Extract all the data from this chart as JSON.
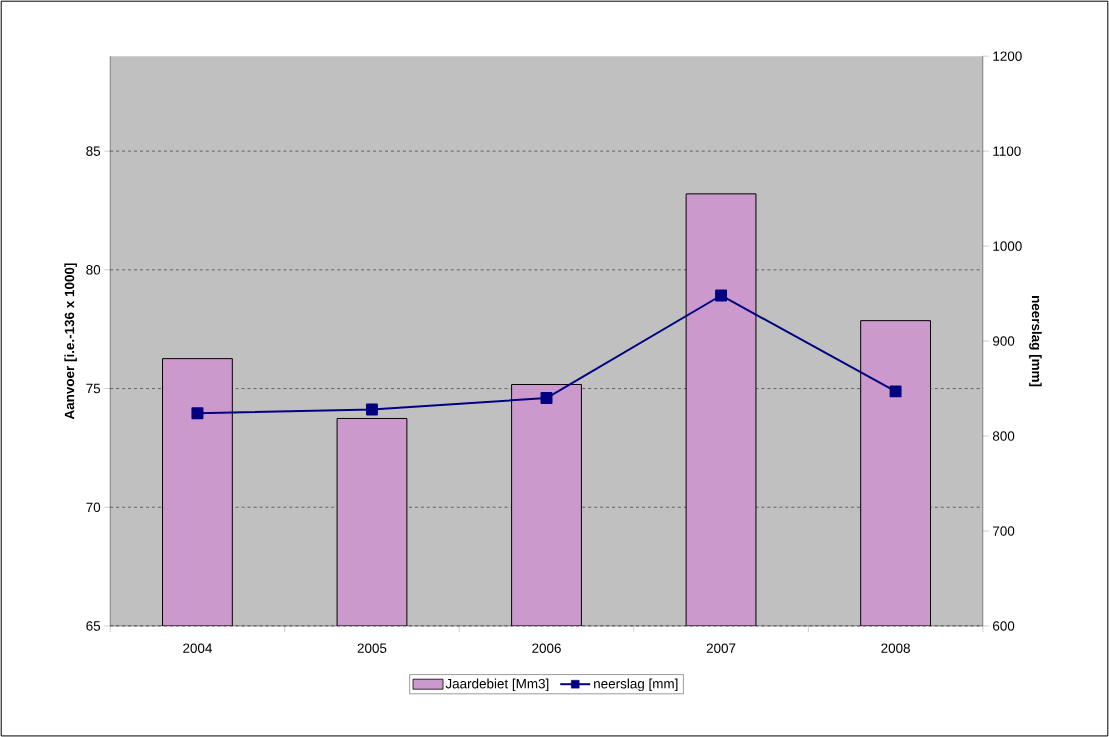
{
  "chart_data": {
    "type": "bar",
    "categories": [
      "2004",
      "2005",
      "2006",
      "2007",
      "2008"
    ],
    "series": [
      {
        "name": "Jaardebiet [Mm3]",
        "color": "#cc99cc",
        "values": [
          76.26,
          73.74,
          75.17,
          83.2,
          77.86
        ]
      },
      {
        "name": "neerslag [mm]",
        "type": "line",
        "axis": "y2",
        "color": "#000080",
        "marker": "square",
        "values": [
          824,
          828,
          840,
          948,
          847
        ]
      }
    ],
    "ylabel": "Aanvoer [i.e.-136 x 1000]",
    "y2label": "neerslag [mm]",
    "ylim": [
      65,
      89
    ],
    "yticks": [
      65,
      70,
      75,
      80,
      85
    ],
    "y2lim": [
      600,
      1200
    ],
    "y2ticks": [
      600,
      700,
      800,
      900,
      1000,
      1100,
      1200
    ],
    "grid": "y",
    "legend": "bottom"
  }
}
